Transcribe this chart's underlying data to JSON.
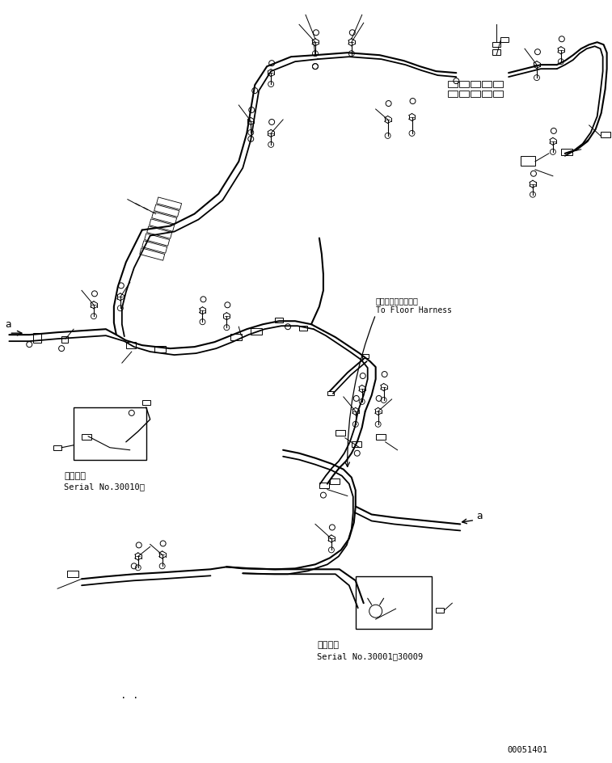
{
  "background_color": "#ffffff",
  "line_color": "#000000",
  "figsize": [
    7.57,
    9.45
  ],
  "dpi": 100,
  "annotation1_jp": "適用号機",
  "annotation1_en": "Serial No.30010～",
  "annotation2_jp": "適用号機",
  "annotation2_en": "Serial No.30001～30009",
  "floor_harness_jp": "フロアーハーネスヘ",
  "floor_harness_en": "To Floor Harness",
  "part_number": "00051401",
  "label_a": "a"
}
